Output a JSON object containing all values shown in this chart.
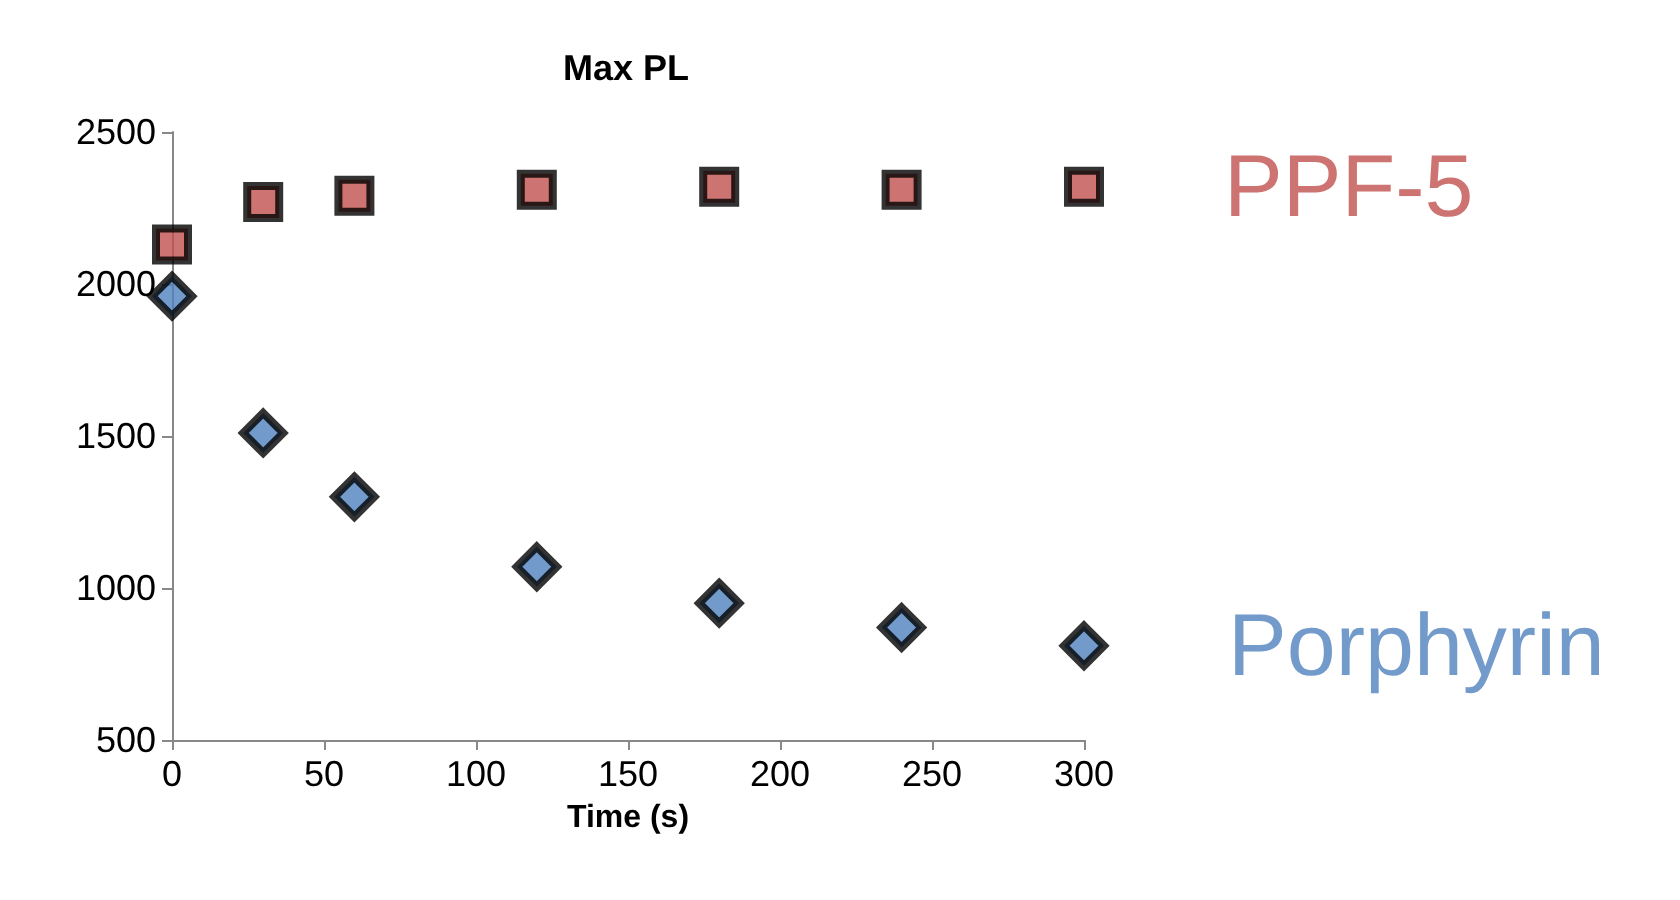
{
  "chart_data": {
    "type": "scatter",
    "title": "Max PL",
    "xlabel": "Time (s)",
    "x": [
      0,
      30,
      60,
      120,
      180,
      240,
      300
    ],
    "series": [
      {
        "name": "PPF-5",
        "color": "#c0504d",
        "marker": "square",
        "values": [
          2130,
          2270,
          2290,
          2310,
          2320,
          2310,
          2320
        ]
      },
      {
        "name": "Porphyrin",
        "color": "#4f81bd",
        "marker": "diamond",
        "values": [
          1960,
          1510,
          1300,
          1070,
          950,
          870,
          810
        ]
      }
    ],
    "xlim": [
      0,
      300
    ],
    "xticks": [
      0,
      50,
      100,
      150,
      200,
      250,
      300
    ],
    "ylim": [
      500,
      2500
    ],
    "yticks": [
      500,
      1000,
      1500,
      2000,
      2500
    ],
    "grid": false,
    "legend": false
  }
}
